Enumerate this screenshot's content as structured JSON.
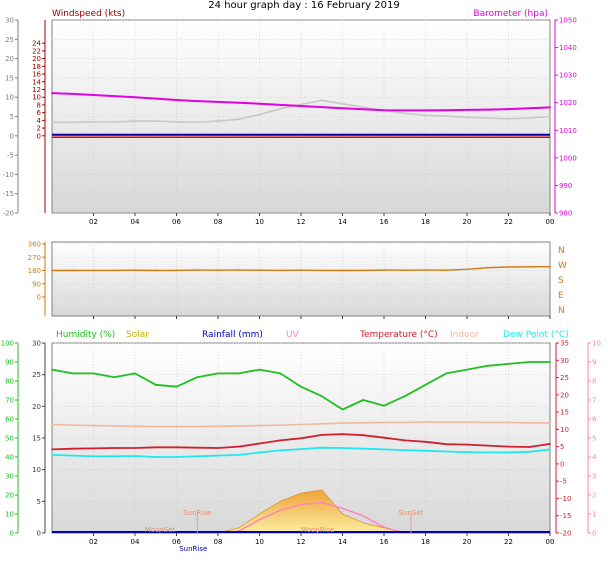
{
  "title": "24 hour graph day : 16 February 2019",
  "x_ticks": [
    "02",
    "04",
    "06",
    "08",
    "10",
    "12",
    "14",
    "16",
    "18",
    "20",
    "22",
    "00"
  ],
  "colors": {
    "wind": "#a00000",
    "baro": "#e000e0",
    "gust": "#c8c8c8",
    "dir": "#d07a10",
    "humidity": "#20c020",
    "solar": "#e0c000",
    "rain": "#0000c0",
    "uv": "#ff80c0",
    "temp": "#d02030",
    "indoor": "#f0b8a0",
    "dew": "#20e8f0"
  },
  "chart_data": [
    {
      "type": "line",
      "name": "wind-barometer",
      "labels": {
        "left": "Windspeed (kts)",
        "right": "Barometer (hpa)"
      },
      "left_axis": {
        "min": -20,
        "max": 30,
        "ticks": [
          -20,
          -15,
          -10,
          -5,
          0,
          5,
          10,
          15,
          20,
          25,
          30
        ]
      },
      "inner_axis": {
        "min": 0,
        "max": 24,
        "ticks": [
          0,
          2,
          4,
          6,
          8,
          10,
          12,
          14,
          16,
          18,
          20,
          22,
          24
        ]
      },
      "right_axis": {
        "min": 980,
        "max": 1050,
        "ticks": [
          980,
          990,
          1000,
          1010,
          1020,
          1030,
          1040,
          1050
        ]
      },
      "hours": [
        0,
        1,
        2,
        3,
        4,
        5,
        6,
        7,
        8,
        9,
        10,
        11,
        12,
        13,
        14,
        15,
        16,
        17,
        18,
        19,
        20,
        21,
        22,
        23,
        24
      ],
      "barometer": [
        1023.5,
        1023.2,
        1022.8,
        1022.4,
        1022.0,
        1021.5,
        1021.0,
        1020.6,
        1020.3,
        1020.0,
        1019.6,
        1019.2,
        1018.8,
        1018.4,
        1018.0,
        1017.6,
        1017.3,
        1017.2,
        1017.2,
        1017.3,
        1017.4,
        1017.5,
        1017.7,
        1018.0,
        1018.3
      ],
      "windspeed": [
        0,
        0,
        0,
        0,
        0,
        0,
        0,
        0,
        0,
        0,
        0,
        0,
        0,
        0,
        0,
        0,
        0,
        0,
        0,
        0,
        0,
        0,
        0,
        0,
        0
      ],
      "gust": [
        3.5,
        3.5,
        3.6,
        3.6,
        3.8,
        3.8,
        3.6,
        3.5,
        3.8,
        4.3,
        5.5,
        7.0,
        8.1,
        9.2,
        8.3,
        7.4,
        6.6,
        5.8,
        5.3,
        5.1,
        4.8,
        4.6,
        4.4,
        4.6,
        5.0
      ]
    },
    {
      "type": "scatter",
      "name": "wind-direction",
      "left_axis": {
        "min": 0,
        "max": 360,
        "ticks": [
          0,
          90,
          180,
          270,
          360
        ]
      },
      "right_labels": [
        "N",
        "W",
        "S",
        "E",
        "N"
      ],
      "hours": [
        0,
        1,
        2,
        3,
        4,
        5,
        6,
        7,
        8,
        9,
        10,
        11,
        12,
        13,
        14,
        15,
        16,
        17,
        18,
        19,
        20,
        21,
        22,
        23,
        24
      ],
      "direction": [
        180,
        180,
        181,
        181,
        182,
        180,
        181,
        183,
        182,
        183,
        182,
        181,
        182,
        181,
        180,
        181,
        183,
        182,
        183,
        182,
        188,
        199,
        204,
        205,
        206
      ]
    },
    {
      "type": "line",
      "name": "weather",
      "labels": [
        "Humidity (%)",
        "Solar",
        "Rainfall (mm)",
        "UV",
        "Temperature (°C)",
        "Indoor",
        "Dew Point (°C)"
      ],
      "humidity_axis": {
        "min": 0,
        "max": 100,
        "ticks": [
          0,
          10,
          20,
          30,
          40,
          50,
          60,
          70,
          80,
          90,
          100
        ]
      },
      "rain_axis": {
        "min": 0,
        "max": 30,
        "ticks": [
          0,
          5,
          10,
          15,
          20,
          25,
          30
        ]
      },
      "temp_axis": {
        "min": -20,
        "max": 35,
        "ticks": [
          -20,
          -15,
          -10,
          -5,
          0,
          5,
          10,
          15,
          20,
          25,
          30,
          35
        ]
      },
      "uv_axis": {
        "min": 0,
        "max": 10,
        "ticks": [
          0,
          1,
          2,
          3,
          4,
          5,
          6,
          7,
          8,
          9,
          10
        ]
      },
      "hours": [
        0,
        1,
        2,
        3,
        4,
        5,
        6,
        7,
        8,
        9,
        10,
        11,
        12,
        13,
        14,
        15,
        16,
        17,
        18,
        19,
        20,
        21,
        22,
        23,
        24
      ],
      "humidity": [
        86,
        84,
        84,
        82,
        84,
        78,
        77,
        82,
        84,
        84,
        86,
        84,
        77,
        72,
        65,
        70,
        67,
        72,
        78,
        84,
        86,
        88,
        89,
        90,
        90
      ],
      "temperature": [
        4.2,
        4.4,
        4.5,
        4.6,
        4.6,
        4.8,
        4.8,
        4.7,
        4.6,
        5.0,
        5.9,
        6.8,
        7.4,
        8.4,
        8.6,
        8.3,
        7.6,
        6.8,
        6.4,
        5.7,
        5.6,
        5.3,
        5.0,
        4.9,
        5.8
      ],
      "dewpoint": [
        2.6,
        2.4,
        2.2,
        2.2,
        2.3,
        2.0,
        2.0,
        2.2,
        2.4,
        2.6,
        3.3,
        3.9,
        4.3,
        4.7,
        4.6,
        4.4,
        4.2,
        4.0,
        3.8,
        3.6,
        3.4,
        3.3,
        3.3,
        3.5,
        4.2
      ],
      "indoor": [
        11.4,
        11.2,
        11.1,
        11.0,
        10.9,
        10.8,
        10.8,
        10.8,
        10.9,
        11.0,
        11.1,
        11.2,
        11.4,
        11.6,
        11.8,
        11.9,
        12.0,
        12.0,
        12.1,
        12.1,
        12.1,
        12.0,
        12.0,
        11.9,
        11.9
      ],
      "solar": [
        0,
        0,
        0,
        0,
        0,
        0,
        0,
        0,
        0,
        0.8,
        3.0,
        5.0,
        6.3,
        6.8,
        3.0,
        1.6,
        0.8,
        0,
        0,
        0,
        0,
        0,
        0,
        0,
        0
      ],
      "uv": [
        0,
        0,
        0,
        0,
        0,
        0,
        0,
        0,
        0,
        0.1,
        0.7,
        1.2,
        1.5,
        1.6,
        1.3,
        0.9,
        0.3,
        0,
        0,
        0,
        0,
        0,
        0,
        0,
        0
      ],
      "rainfall": [
        0,
        0,
        0,
        0,
        0,
        0,
        0,
        0,
        0,
        0,
        0,
        0,
        0,
        0,
        0,
        0,
        0,
        0,
        0,
        0,
        0,
        0,
        0,
        0,
        0
      ],
      "markers": [
        {
          "text": "SunRise",
          "hour": 7.0
        },
        {
          "text": "SunSet",
          "hour": 17.3
        },
        {
          "text": "MoonSet",
          "hour": 5.2
        },
        {
          "text": "MoonRise",
          "hour": 12.8
        }
      ],
      "bottom_extra": "SunRise"
    }
  ]
}
